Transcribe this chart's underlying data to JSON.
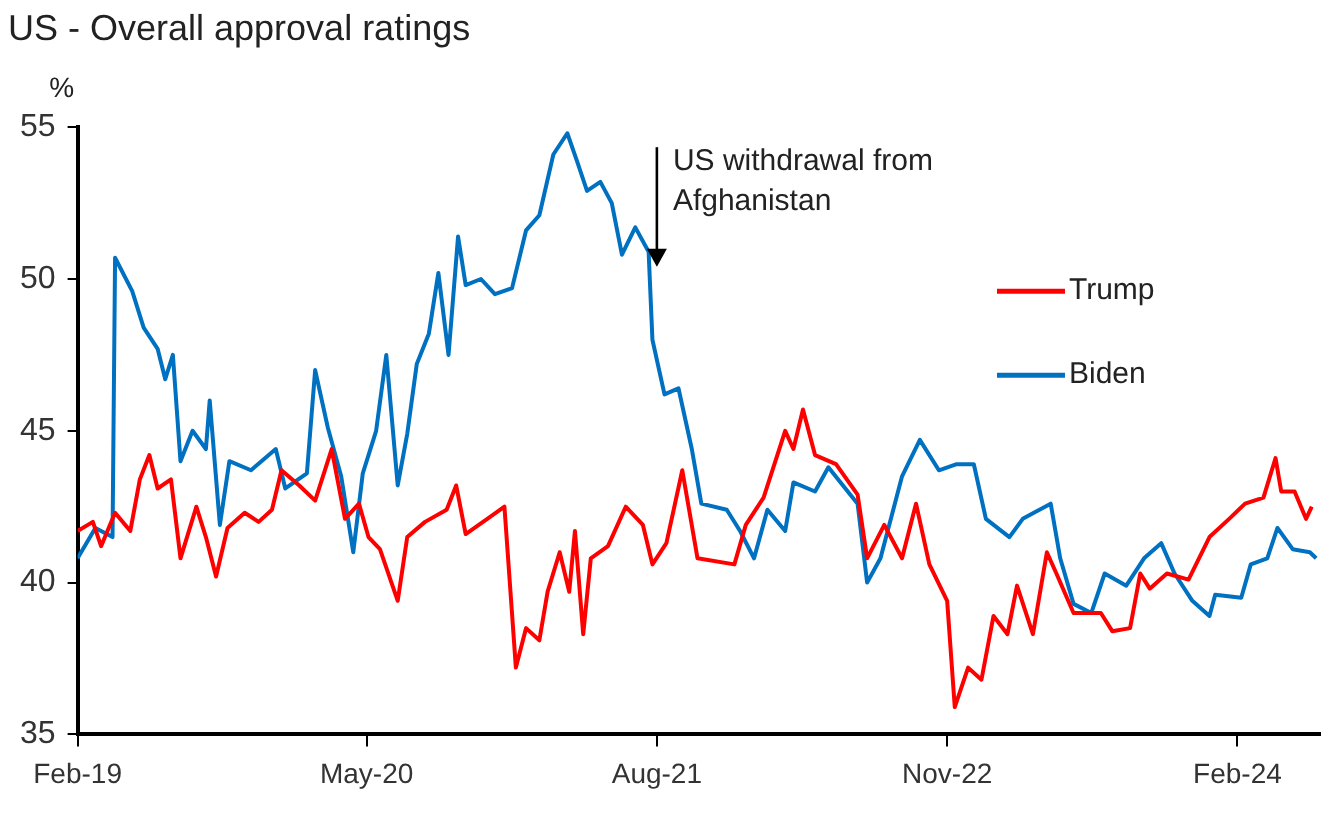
{
  "chart_data": {
    "type": "line",
    "title": "US - Overall approval ratings",
    "ylabel": "%",
    "xlim": [
      "2019-02-01",
      "2024-06-10"
    ],
    "xticks": [
      {
        "value": "2019-02-01",
        "label": "Feb-19"
      },
      {
        "value": "2020-05-01",
        "label": "May-20"
      },
      {
        "value": "2021-08-01",
        "label": "Aug-21"
      },
      {
        "value": "2022-11-01",
        "label": "Nov-22"
      },
      {
        "value": "2024-02-01",
        "label": "Feb-24"
      }
    ],
    "ylim": [
      35,
      55
    ],
    "yticks": [
      35,
      40,
      45,
      50,
      55
    ],
    "grid": false,
    "legend": "right",
    "marker": "none",
    "line_style": "solid",
    "annotations": [
      {
        "text": "US withdrawal from Afghanistan",
        "x": "2021-08-01",
        "y": 50.4
      }
    ],
    "series": [
      {
        "name": "Trump",
        "color": "#ff0000",
        "x": [
          "2019-02-01",
          "2019-02-25",
          "2019-03-10",
          "2019-04-01",
          "2019-04-25",
          "2019-05-10",
          "2019-05-25",
          "2019-06-07",
          "2019-06-28",
          "2019-07-13",
          "2019-08-07",
          "2019-08-22",
          "2019-09-07",
          "2019-09-25",
          "2019-10-22",
          "2019-11-13",
          "2019-12-04",
          "2019-12-19",
          "2020-01-16",
          "2020-02-10",
          "2020-03-07",
          "2020-03-28",
          "2020-04-19",
          "2020-05-04",
          "2020-05-22",
          "2020-06-19",
          "2020-07-04",
          "2020-08-01",
          "2020-09-04",
          "2020-09-19",
          "2020-10-04",
          "2020-11-07",
          "2020-12-04",
          "2020-12-22",
          "2021-01-07",
          "2021-01-28",
          "2021-02-10",
          "2021-03-01",
          "2021-03-16",
          "2021-03-25",
          "2021-04-07",
          "2021-04-19",
          "2021-05-16",
          "2021-06-13",
          "2021-07-10",
          "2021-07-25",
          "2021-08-16",
          "2021-09-10",
          "2021-10-04",
          "2021-12-01",
          "2021-12-19",
          "2022-01-16",
          "2022-02-19",
          "2022-03-04",
          "2022-03-19",
          "2022-04-07",
          "2022-05-10",
          "2022-06-13",
          "2022-06-28",
          "2022-07-25",
          "2022-08-22",
          "2022-09-13",
          "2022-10-04",
          "2022-11-01",
          "2022-11-13",
          "2022-12-04",
          "2022-12-25",
          "2023-01-13",
          "2023-02-04",
          "2023-02-19",
          "2023-03-16",
          "2023-04-07",
          "2023-04-22",
          "2023-05-19",
          "2023-07-01",
          "2023-07-19",
          "2023-08-16",
          "2023-09-01",
          "2023-09-16",
          "2023-10-13",
          "2023-11-16",
          "2023-12-19",
          "2024-01-19",
          "2024-02-13",
          "2024-03-13",
          "2024-04-01",
          "2024-04-10",
          "2024-05-01",
          "2024-05-19",
          "2024-05-28"
        ],
        "values": [
          41.7,
          42.0,
          41.2,
          42.3,
          41.7,
          43.4,
          44.2,
          43.1,
          43.4,
          40.8,
          42.5,
          41.5,
          40.2,
          41.8,
          42.3,
          42.0,
          42.4,
          43.7,
          43.2,
          42.7,
          44.4,
          42.1,
          42.6,
          41.5,
          41.1,
          39.4,
          41.5,
          42.0,
          42.4,
          43.2,
          41.6,
          42.1,
          42.5,
          37.2,
          38.5,
          38.1,
          39.7,
          41.0,
          39.7,
          41.7,
          38.3,
          40.8,
          41.2,
          42.5,
          41.9,
          40.6,
          41.3,
          43.7,
          40.8,
          40.6,
          41.9,
          42.8,
          45.0,
          44.4,
          45.7,
          44.2,
          43.9,
          42.9,
          40.8,
          41.9,
          40.8,
          42.6,
          40.6,
          39.4,
          35.9,
          37.2,
          36.8,
          38.9,
          38.3,
          39.9,
          38.3,
          41.0,
          40.3,
          39.0,
          39.0,
          38.4,
          38.5,
          40.3,
          39.8,
          40.3,
          40.1,
          41.5,
          42.1,
          42.6,
          42.8,
          44.1,
          43.0,
          43.0,
          42.1,
          42.5
        ]
      },
      {
        "name": "Biden",
        "color": "#0070c0",
        "x": [
          "2019-02-01",
          "2019-03-01",
          "2019-03-28",
          "2019-04-01",
          "2019-04-28",
          "2019-05-16",
          "2019-06-07",
          "2019-06-19",
          "2019-07-01",
          "2019-07-13",
          "2019-08-01",
          "2019-08-22",
          "2019-08-28",
          "2019-09-13",
          "2019-09-28",
          "2019-11-01",
          "2019-12-10",
          "2019-12-25",
          "2020-01-28",
          "2020-02-10",
          "2020-03-01",
          "2020-03-22",
          "2020-04-10",
          "2020-04-25",
          "2020-05-16",
          "2020-06-01",
          "2020-06-19",
          "2020-07-04",
          "2020-07-19",
          "2020-08-07",
          "2020-08-22",
          "2020-09-07",
          "2020-09-22",
          "2020-10-04",
          "2020-10-28",
          "2020-11-19",
          "2020-12-16",
          "2021-01-07",
          "2021-01-28",
          "2021-02-19",
          "2021-03-13",
          "2021-03-28",
          "2021-04-13",
          "2021-05-04",
          "2021-05-22",
          "2021-06-07",
          "2021-06-28",
          "2021-07-19",
          "2021-07-25",
          "2021-08-13",
          "2021-09-04",
          "2021-09-25",
          "2021-10-10",
          "2021-11-19",
          "2021-12-10",
          "2022-01-01",
          "2022-01-22",
          "2022-02-19",
          "2022-03-04",
          "2022-04-07",
          "2022-04-28",
          "2022-06-13",
          "2022-06-28",
          "2022-07-19",
          "2022-08-22",
          "2022-09-19",
          "2022-10-19",
          "2022-11-16",
          "2022-12-13",
          "2023-01-01",
          "2023-02-07",
          "2023-02-28",
          "2023-04-13",
          "2023-04-28",
          "2023-05-19",
          "2023-06-16",
          "2023-07-07",
          "2023-08-10",
          "2023-09-07",
          "2023-10-04",
          "2023-10-25",
          "2023-11-22",
          "2023-12-19",
          "2023-12-28",
          "2024-02-07",
          "2024-02-22",
          "2024-03-19",
          "2024-04-04",
          "2024-04-28",
          "2024-05-25",
          "2024-06-04"
        ],
        "values": [
          40.8,
          41.8,
          41.5,
          50.7,
          49.6,
          48.4,
          47.7,
          46.7,
          47.5,
          44.0,
          45.0,
          44.4,
          46.0,
          41.9,
          44.0,
          43.7,
          44.4,
          43.1,
          43.6,
          47.0,
          45.1,
          43.5,
          41.0,
          43.6,
          45.0,
          47.5,
          43.2,
          44.9,
          47.2,
          48.2,
          50.2,
          47.5,
          51.4,
          49.8,
          50.0,
          49.5,
          49.7,
          51.6,
          52.1,
          54.1,
          54.8,
          53.9,
          52.9,
          53.2,
          52.5,
          50.8,
          51.7,
          50.9,
          48.0,
          46.2,
          46.4,
          44.4,
          42.6,
          42.4,
          41.7,
          40.8,
          42.4,
          41.7,
          43.3,
          43.0,
          43.8,
          42.6,
          40.0,
          40.8,
          43.5,
          44.7,
          43.7,
          43.9,
          43.9,
          42.1,
          41.5,
          42.1,
          42.6,
          40.8,
          39.3,
          39.0,
          40.3,
          39.9,
          40.8,
          41.3,
          40.3,
          39.4,
          38.9,
          39.6,
          39.5,
          40.6,
          40.8,
          41.8,
          41.1,
          41.0,
          40.8
        ]
      }
    ]
  }
}
